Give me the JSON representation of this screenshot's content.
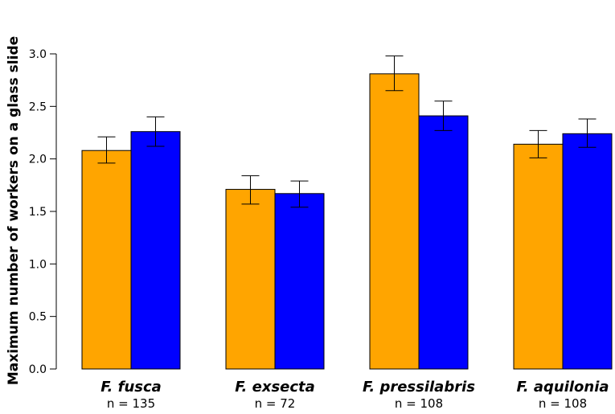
{
  "chart_data": {
    "type": "bar",
    "title": "",
    "xlabel": "",
    "ylabel": "Maximum number of workers on a glass slide",
    "ylim": [
      0,
      3.0
    ],
    "yticks": [
      "0.0",
      "0.5",
      "1.0",
      "1.5",
      "2.0",
      "2.5",
      "3.0"
    ],
    "categories": [
      "F. fusca",
      "F. exsecta",
      "F. pressilabris",
      "F. aquilonia"
    ],
    "sample_sizes": [
      "n = 135",
      "n = 72",
      "n = 108",
      "n = 108"
    ],
    "series": [
      {
        "name": "orange",
        "color": "#FFA500",
        "values": [
          2.08,
          1.71,
          2.81,
          2.14
        ],
        "err_low": [
          1.96,
          1.57,
          2.65,
          2.01
        ],
        "err_high": [
          2.21,
          1.84,
          2.98,
          2.27
        ]
      },
      {
        "name": "blue",
        "color": "#0000FF",
        "values": [
          2.26,
          1.67,
          2.41,
          2.24
        ],
        "err_low": [
          2.12,
          1.54,
          2.27,
          2.11
        ],
        "err_high": [
          2.4,
          1.79,
          2.55,
          2.38
        ]
      }
    ]
  }
}
